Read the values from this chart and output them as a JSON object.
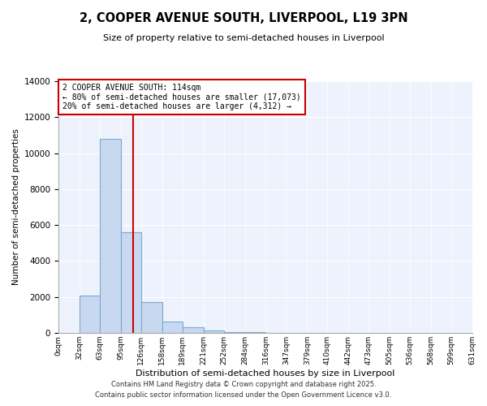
{
  "title": "2, COOPER AVENUE SOUTH, LIVERPOOL, L19 3PN",
  "subtitle": "Size of property relative to semi-detached houses in Liverpool",
  "xlabel": "Distribution of semi-detached houses by size in Liverpool",
  "ylabel": "Number of semi-detached properties",
  "bin_edges": [
    0,
    32,
    63,
    95,
    126,
    158,
    189,
    221,
    252,
    284,
    316,
    347,
    379,
    410,
    442,
    473,
    505,
    536,
    568,
    599,
    631
  ],
  "bar_heights": [
    0,
    2100,
    10800,
    5600,
    1700,
    650,
    320,
    130,
    60,
    30,
    10,
    5,
    2,
    1,
    0,
    0,
    0,
    0,
    0,
    0
  ],
  "bar_color": "#c8d8f0",
  "bar_edge_color": "#7aaad0",
  "property_size": 114,
  "vline_color": "#cc0000",
  "annotation_title": "2 COOPER AVENUE SOUTH: 114sqm",
  "annotation_line1": "← 80% of semi-detached houses are smaller (17,073)",
  "annotation_line2": "20% of semi-detached houses are larger (4,312) →",
  "annotation_box_edge": "#cc0000",
  "ylim": [
    0,
    14000
  ],
  "yticks": [
    0,
    2000,
    4000,
    6000,
    8000,
    10000,
    12000,
    14000
  ],
  "footer_line1": "Contains HM Land Registry data © Crown copyright and database right 2025.",
  "footer_line2": "Contains public sector information licensed under the Open Government Licence v3.0.",
  "background_color": "#ffffff",
  "plot_bg_color": "#eef2fc"
}
